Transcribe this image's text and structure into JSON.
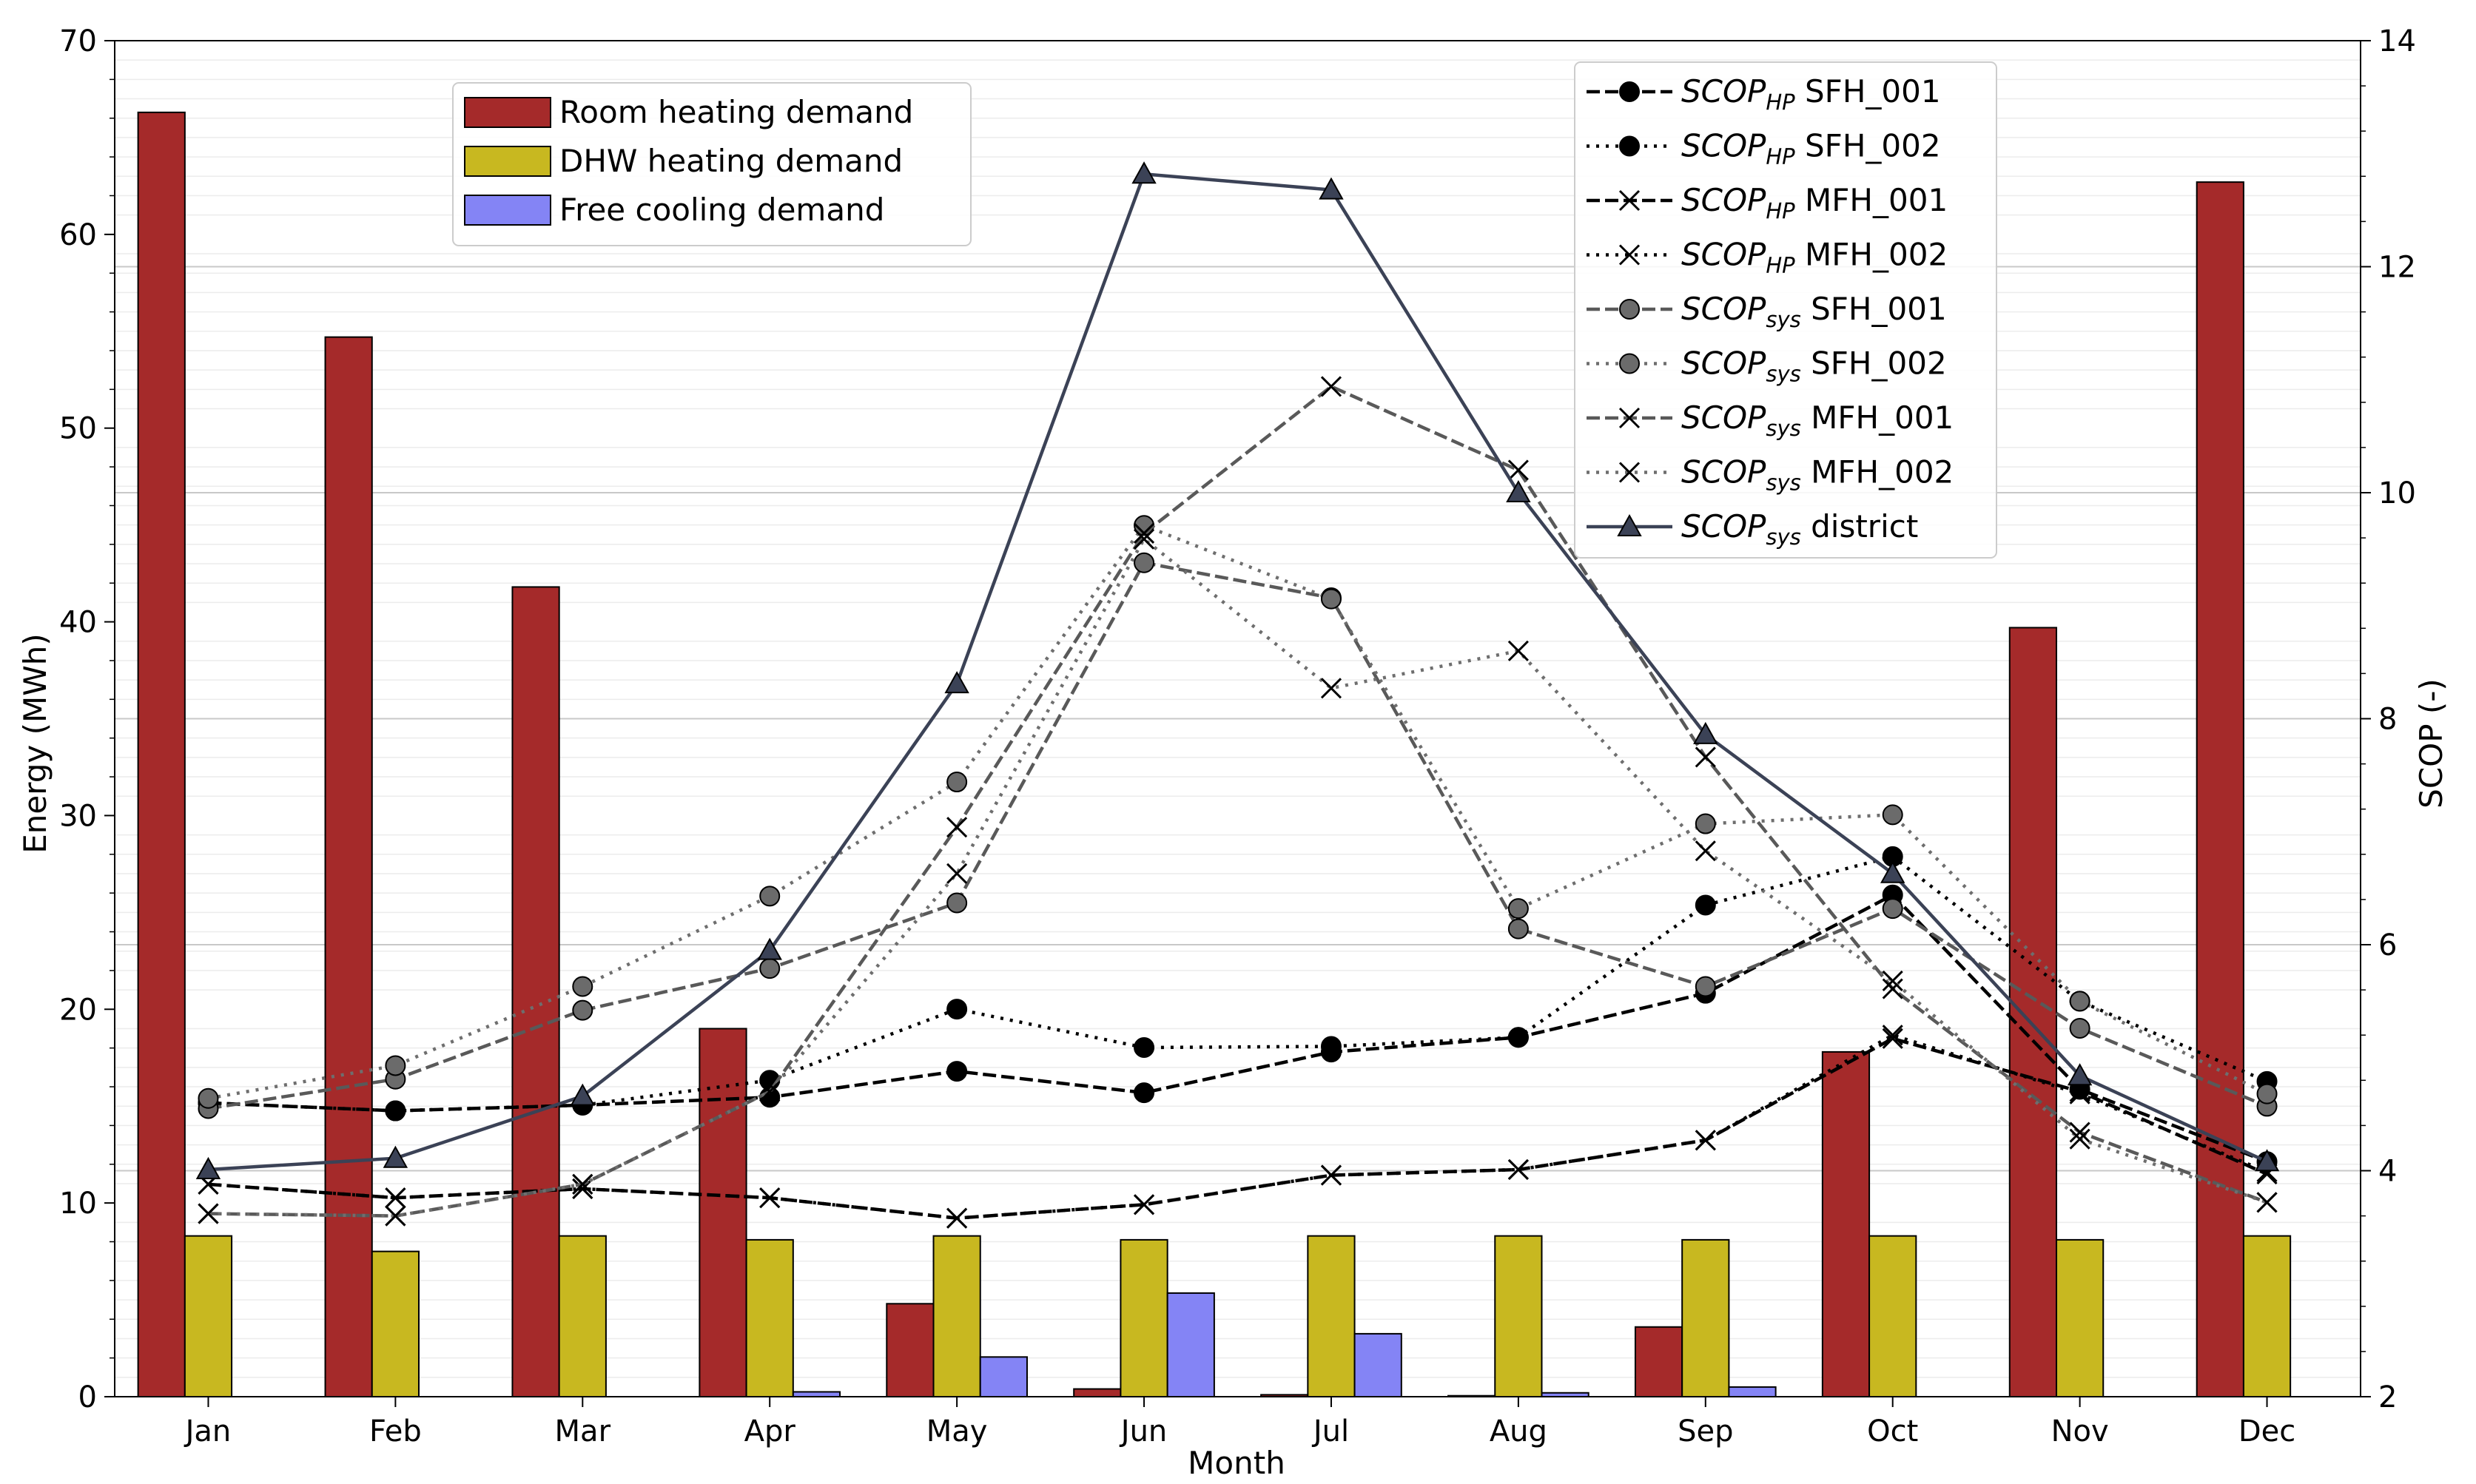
{
  "chart_data": {
    "type": "bar+line",
    "x_axis_label": "Month",
    "left_axis_label": "Energy (MWh)",
    "right_axis_label": "SCOP (-)",
    "left_ylim": [
      0,
      70
    ],
    "right_ylim": [
      2,
      14
    ],
    "left_ticks": [
      0,
      10,
      20,
      30,
      40,
      50,
      60,
      70
    ],
    "right_ticks": [
      2,
      4,
      6,
      8,
      10,
      12,
      14
    ],
    "categories": [
      "Jan",
      "Feb",
      "Mar",
      "Apr",
      "May",
      "Jun",
      "Jul",
      "Aug",
      "Sep",
      "Oct",
      "Nov",
      "Dec"
    ],
    "bar_series": [
      {
        "name": "Room heating demand",
        "color": "#a52a2a",
        "values": [
          66.3,
          54.7,
          41.8,
          19.0,
          4.8,
          0.4,
          0.1,
          0.05,
          3.6,
          17.8,
          39.7,
          62.7
        ]
      },
      {
        "name": "DHW heating demand",
        "color": "#c8b820",
        "values": [
          8.3,
          7.5,
          8.3,
          8.1,
          8.3,
          8.1,
          8.3,
          8.3,
          8.1,
          8.3,
          8.1,
          8.3
        ]
      },
      {
        "name": "Free cooling demand",
        "color": "#8484f5",
        "values": [
          0,
          0,
          0,
          0.25,
          2.05,
          5.35,
          3.25,
          0.2,
          0.5,
          0,
          0,
          0
        ]
      }
    ],
    "line_series": [
      {
        "name_main": "SCOP",
        "name_sub": "HP",
        "name_suffix": " SFH_001",
        "color": "#000000",
        "dash": "18,7",
        "marker": "circle",
        "marker_fill": "#000000",
        "values": [
          4.6,
          4.53,
          4.58,
          4.65,
          4.88,
          4.69,
          5.05,
          5.18,
          5.57,
          6.44,
          4.72,
          4.08
        ]
      },
      {
        "name_main": "SCOP",
        "name_sub": "HP",
        "name_suffix": " SFH_002",
        "color": "#000000",
        "dash": "4,9",
        "marker": "circle",
        "marker_fill": "#000000",
        "values": [
          4.6,
          4.53,
          4.58,
          4.8,
          5.43,
          5.09,
          5.1,
          5.18,
          6.35,
          6.78,
          5.5,
          4.79
        ]
      },
      {
        "name_main": "SCOP",
        "name_sub": "HP",
        "name_suffix": " MFH_001",
        "color": "#000000",
        "dash": "18,7",
        "marker": "x",
        "marker_fill": "none",
        "values": [
          3.88,
          3.76,
          3.84,
          3.76,
          3.58,
          3.7,
          3.96,
          4.01,
          4.27,
          5.17,
          4.7,
          3.97
        ]
      },
      {
        "name_main": "SCOP",
        "name_sub": "HP",
        "name_suffix": " MFH_002",
        "color": "#000000",
        "dash": "4,9",
        "marker": "x",
        "marker_fill": "none",
        "values": [
          3.88,
          3.76,
          3.84,
          3.76,
          3.58,
          3.7,
          3.96,
          4.01,
          4.27,
          5.2,
          4.68,
          3.99
        ]
      },
      {
        "name_main": "SCOP",
        "name_sub": "sys",
        "name_suffix": " SFH_001",
        "color": "#595959",
        "dash": "18,7",
        "marker": "circle",
        "marker_fill": "#6b6b6b",
        "values": [
          4.55,
          4.81,
          5.42,
          5.79,
          6.37,
          9.38,
          9.07,
          6.14,
          5.63,
          6.32,
          5.26,
          4.57
        ]
      },
      {
        "name_main": "SCOP",
        "name_sub": "sys",
        "name_suffix": " SFH_002",
        "color": "#6e6e6e",
        "dash": "4,9",
        "marker": "circle",
        "marker_fill": "#6b6b6b",
        "values": [
          4.64,
          4.93,
          5.63,
          6.43,
          7.44,
          9.71,
          9.06,
          6.32,
          7.07,
          7.15,
          5.5,
          4.68
        ]
      },
      {
        "name_main": "SCOP",
        "name_sub": "sys",
        "name_suffix": " MFH_001",
        "color": "#595959",
        "dash": "18,7",
        "marker": "x",
        "marker_fill": "none",
        "values": [
          3.62,
          3.6,
          3.88,
          4.7,
          7.04,
          9.64,
          10.94,
          10.2,
          7.66,
          5.61,
          4.34,
          3.72
        ]
      },
      {
        "name_main": "SCOP",
        "name_sub": "sys",
        "name_suffix": " MFH_002",
        "color": "#6e6e6e",
        "dash": "4,9",
        "marker": "x",
        "marker_fill": "none",
        "values": [
          3.62,
          3.6,
          3.88,
          4.7,
          6.63,
          9.59,
          8.27,
          8.6,
          6.83,
          5.68,
          4.28,
          3.72
        ]
      },
      {
        "name_main": "SCOP",
        "name_sub": "sys",
        "name_suffix": " district",
        "color": "#3b4256",
        "dash": "",
        "marker": "triangle",
        "marker_fill": "#3b4256",
        "values": [
          4.01,
          4.11,
          4.66,
          5.95,
          8.31,
          12.82,
          12.68,
          10.0,
          7.86,
          6.63,
          4.84,
          4.08
        ]
      }
    ]
  }
}
